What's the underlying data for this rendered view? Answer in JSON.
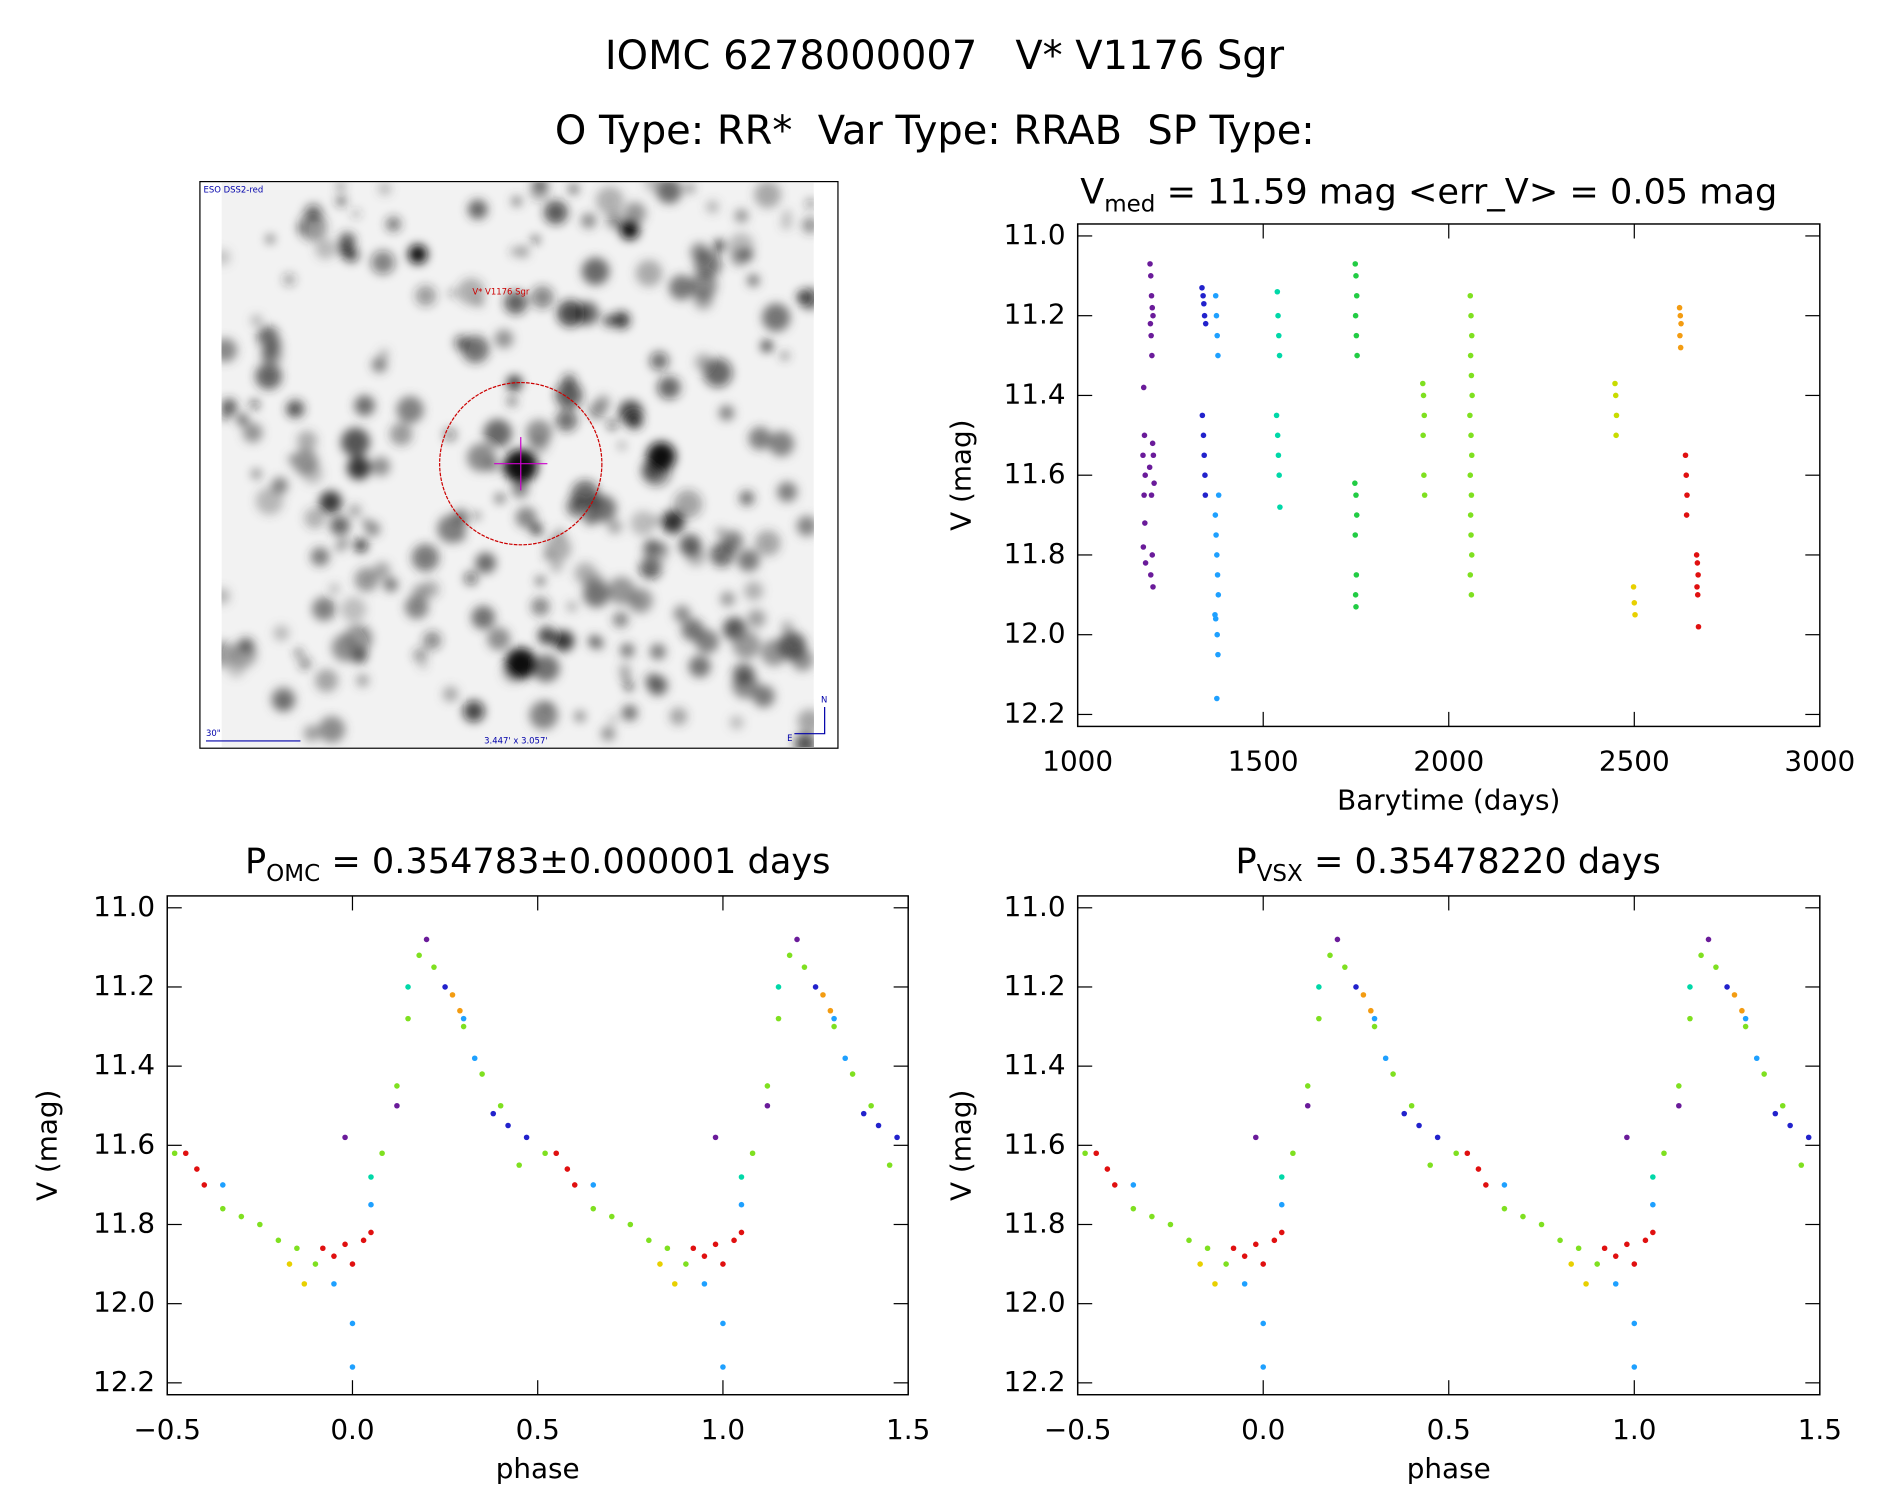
{
  "header": {
    "title": "IOMC 6278000007   V* V1176 Sgr",
    "subtitle": "O Type: RR*  Var Type: RRAB  SP Type:"
  },
  "image": {
    "survey": "ESO DSS2-red",
    "object": "V* V1176 Sgr",
    "scale": "30\"",
    "size": "3.447' x 3.057'",
    "north": "N",
    "east": "E"
  },
  "chart_data": [
    {
      "type": "scatter",
      "title": {
        "main": "V",
        "sub": "med",
        "rest": " = 11.59 mag <err_V> = 0.05 mag"
      },
      "xlabel": "Barytime (days)",
      "ylabel": "V (mag)",
      "xlim": [
        1000,
        3000
      ],
      "xticks": [
        1000,
        1500,
        2000,
        2500,
        3000
      ],
      "ylim": [
        10.97,
        12.23
      ],
      "y_inverted": true,
      "yticks": [
        {
          "value": 11,
          "label": "11.0"
        },
        11.2,
        11.4,
        11.6,
        11.8,
        {
          "value": 12,
          "label": "12.0"
        },
        12.2
      ],
      "series": [
        {
          "color": "#6a1b9a",
          "x": [
            1178,
            1180,
            1176,
            1182,
            1179,
            1181,
            1177,
            1183,
            1195,
            1197,
            1199,
            1201,
            1203,
            1196,
            1198,
            1200,
            1202,
            1204,
            1194,
            1206,
            1199,
            1201,
            1197,
            1203
          ],
          "values": [
            11.38,
            11.5,
            11.55,
            11.6,
            11.65,
            11.72,
            11.78,
            11.82,
            11.07,
            11.1,
            11.15,
            11.18,
            11.2,
            11.22,
            11.25,
            11.3,
            11.52,
            11.55,
            11.58,
            11.62,
            11.65,
            11.8,
            11.85,
            11.88
          ]
        },
        {
          "color": "#2222cc",
          "x": [
            1335,
            1338,
            1340,
            1342,
            1345,
            1336,
            1339,
            1341,
            1343,
            1344
          ],
          "values": [
            11.13,
            11.15,
            11.17,
            11.2,
            11.22,
            11.45,
            11.5,
            11.55,
            11.6,
            11.65
          ]
        },
        {
          "color": "#1ea0ff",
          "x": [
            1372,
            1374,
            1376,
            1378,
            1380,
            1371,
            1373,
            1375,
            1377,
            1379,
            1370,
            1372,
            1376,
            1378,
            1375
          ],
          "values": [
            11.15,
            11.2,
            11.25,
            11.3,
            11.65,
            11.7,
            11.75,
            11.8,
            11.85,
            11.9,
            11.95,
            11.96,
            12.0,
            12.05,
            12.16
          ]
        },
        {
          "color": "#00d8a8",
          "x": [
            1538,
            1540,
            1542,
            1544,
            1536,
            1539,
            1541,
            1543,
            1545
          ],
          "values": [
            11.14,
            11.2,
            11.25,
            11.3,
            11.45,
            11.5,
            11.55,
            11.6,
            11.68
          ]
        },
        {
          "color": "#22cc44",
          "x": [
            1748,
            1750,
            1752,
            1749,
            1751,
            1753,
            1747,
            1750,
            1752,
            1748,
            1751,
            1749,
            1750
          ],
          "values": [
            11.07,
            11.1,
            11.15,
            11.2,
            11.25,
            11.3,
            11.62,
            11.65,
            11.7,
            11.75,
            11.85,
            11.9,
            11.93
          ]
        },
        {
          "color": "#7fe020",
          "x": [
            1930,
            1932,
            1934,
            1931,
            1933,
            1935,
            2058,
            2060,
            2062,
            2059,
            2061,
            2063,
            2057,
            2060,
            2062,
            2058,
            2061,
            2059,
            2060,
            2062,
            2058,
            2061
          ],
          "values": [
            11.37,
            11.4,
            11.45,
            11.5,
            11.6,
            11.65,
            11.15,
            11.2,
            11.25,
            11.3,
            11.35,
            11.4,
            11.45,
            11.5,
            11.55,
            11.6,
            11.65,
            11.7,
            11.75,
            11.8,
            11.85,
            11.9
          ]
        },
        {
          "color": "#c8dc00",
          "x": [
            2448,
            2450,
            2452,
            2451
          ],
          "values": [
            11.37,
            11.4,
            11.45,
            11.5
          ]
        },
        {
          "color": "#e8d000",
          "x": [
            2498,
            2500,
            2502
          ],
          "values": [
            11.88,
            11.92,
            11.95
          ]
        },
        {
          "color": "#f39c12",
          "x": [
            2622,
            2624,
            2626,
            2623,
            2625
          ],
          "values": [
            11.18,
            11.2,
            11.22,
            11.25,
            11.28
          ]
        },
        {
          "color": "#e01010",
          "x": [
            2638,
            2640,
            2642,
            2641,
            2668,
            2670,
            2672,
            2669,
            2671,
            2673
          ],
          "values": [
            11.55,
            11.6,
            11.65,
            11.7,
            11.8,
            11.82,
            11.85,
            11.88,
            11.9,
            11.98
          ]
        }
      ]
    },
    {
      "type": "scatter",
      "title": {
        "main": "P",
        "sub": "OMC",
        "rest": " = 0.354783±0.000001 days"
      },
      "xlabel": "phase",
      "ylabel": "V (mag)",
      "xlim": [
        -0.5,
        1.5
      ],
      "xticks": [
        {
          "value": -0.5,
          "label": "−0.5"
        },
        {
          "value": 0,
          "label": "0.0"
        },
        0.5,
        {
          "value": 1,
          "label": "1.0"
        },
        1.5
      ],
      "ylim": [
        10.97,
        12.23
      ],
      "y_inverted": true,
      "yticks": [
        {
          "value": 11,
          "label": "11.0"
        },
        11.2,
        11.4,
        11.6,
        11.8,
        {
          "value": 12,
          "label": "12.0"
        },
        12.2
      ],
      "series": [
        {
          "color": "#e01010",
          "x": [
            -0.45,
            -0.42,
            -0.4,
            -0.08,
            -0.05,
            -0.02,
            0.0,
            0.03,
            0.05,
            0.55,
            0.58,
            0.6,
            0.92,
            0.95,
            0.98,
            1.0,
            1.03,
            1.05
          ],
          "values": [
            11.62,
            11.66,
            11.7,
            11.86,
            11.88,
            11.85,
            11.9,
            11.84,
            11.82,
            11.62,
            11.66,
            11.7,
            11.86,
            11.88,
            11.85,
            11.9,
            11.84,
            11.82
          ]
        },
        {
          "color": "#7fe020",
          "x": [
            -0.48,
            -0.35,
            -0.3,
            -0.25,
            -0.2,
            -0.15,
            -0.1,
            0.08,
            0.12,
            0.15,
            0.18,
            0.22,
            0.3,
            0.35,
            0.4,
            0.45,
            0.52,
            0.65,
            0.7,
            0.75,
            0.8,
            0.85,
            0.9,
            1.08,
            1.12,
            1.15,
            1.18,
            1.22,
            1.3,
            1.35,
            1.4,
            1.45
          ],
          "values": [
            11.62,
            11.76,
            11.78,
            11.8,
            11.84,
            11.86,
            11.9,
            11.62,
            11.45,
            11.28,
            11.12,
            11.15,
            11.3,
            11.42,
            11.5,
            11.65,
            11.62,
            11.76,
            11.78,
            11.8,
            11.84,
            11.86,
            11.9,
            11.62,
            11.45,
            11.28,
            11.12,
            11.15,
            11.3,
            11.42,
            11.5,
            11.65
          ]
        },
        {
          "color": "#1ea0ff",
          "x": [
            -0.35,
            -0.05,
            0.0,
            0.0,
            0.05,
            0.3,
            0.33,
            0.65,
            0.95,
            1.0,
            1.0,
            1.05,
            1.3,
            1.33
          ],
          "values": [
            11.7,
            11.95,
            12.05,
            12.16,
            11.75,
            11.28,
            11.38,
            11.7,
            11.95,
            12.05,
            12.16,
            11.75,
            11.28,
            11.38
          ]
        },
        {
          "color": "#2222cc",
          "x": [
            0.25,
            0.38,
            0.42,
            0.47,
            1.25,
            1.38,
            1.42,
            1.47
          ],
          "values": [
            11.2,
            11.52,
            11.55,
            11.58,
            11.2,
            11.52,
            11.55,
            11.58
          ]
        },
        {
          "color": "#6a1b9a",
          "x": [
            -0.02,
            0.12,
            0.2,
            0.98,
            1.12,
            1.2
          ],
          "values": [
            11.58,
            11.5,
            11.08,
            11.58,
            11.5,
            11.08
          ]
        },
        {
          "color": "#f39c12",
          "x": [
            0.27,
            0.29,
            1.27,
            1.29
          ],
          "values": [
            11.22,
            11.26,
            11.22,
            11.26
          ]
        },
        {
          "color": "#e8d000",
          "x": [
            -0.17,
            -0.13,
            0.83,
            0.87
          ],
          "values": [
            11.9,
            11.95,
            11.9,
            11.95
          ]
        },
        {
          "color": "#00d8a8",
          "x": [
            0.05,
            0.15,
            1.05,
            1.15
          ],
          "values": [
            11.68,
            11.2,
            11.68,
            11.2
          ]
        }
      ]
    },
    {
      "type": "scatter",
      "title": {
        "main": "P",
        "sub": "VSX",
        "rest": " = 0.35478220 days"
      },
      "xlabel": "phase",
      "ylabel": "V (mag)",
      "xlim": [
        -0.5,
        1.5
      ],
      "xticks": [
        {
          "value": -0.5,
          "label": "−0.5"
        },
        {
          "value": 0,
          "label": "0.0"
        },
        0.5,
        {
          "value": 1,
          "label": "1.0"
        },
        1.5
      ],
      "ylim": [
        10.97,
        12.23
      ],
      "y_inverted": true,
      "yticks": [
        {
          "value": 11,
          "label": "11.0"
        },
        11.2,
        11.4,
        11.6,
        11.8,
        {
          "value": 12,
          "label": "12.0"
        },
        12.2
      ],
      "series": [
        {
          "color": "#e01010",
          "x": [
            -0.45,
            -0.42,
            -0.4,
            -0.08,
            -0.05,
            -0.02,
            0.0,
            0.03,
            0.05,
            0.55,
            0.58,
            0.6,
            0.92,
            0.95,
            0.98,
            1.0,
            1.03,
            1.05
          ],
          "values": [
            11.62,
            11.66,
            11.7,
            11.86,
            11.88,
            11.85,
            11.9,
            11.84,
            11.82,
            11.62,
            11.66,
            11.7,
            11.86,
            11.88,
            11.85,
            11.9,
            11.84,
            11.82
          ]
        },
        {
          "color": "#7fe020",
          "x": [
            -0.48,
            -0.35,
            -0.3,
            -0.25,
            -0.2,
            -0.15,
            -0.1,
            0.08,
            0.12,
            0.15,
            0.18,
            0.22,
            0.3,
            0.35,
            0.4,
            0.45,
            0.52,
            0.65,
            0.7,
            0.75,
            0.8,
            0.85,
            0.9,
            1.08,
            1.12,
            1.15,
            1.18,
            1.22,
            1.3,
            1.35,
            1.4,
            1.45
          ],
          "values": [
            11.62,
            11.76,
            11.78,
            11.8,
            11.84,
            11.86,
            11.9,
            11.62,
            11.45,
            11.28,
            11.12,
            11.15,
            11.3,
            11.42,
            11.5,
            11.65,
            11.62,
            11.76,
            11.78,
            11.8,
            11.84,
            11.86,
            11.9,
            11.62,
            11.45,
            11.28,
            11.12,
            11.15,
            11.3,
            11.42,
            11.5,
            11.65
          ]
        },
        {
          "color": "#1ea0ff",
          "x": [
            -0.35,
            -0.05,
            0.0,
            0.0,
            0.05,
            0.3,
            0.33,
            0.65,
            0.95,
            1.0,
            1.0,
            1.05,
            1.3,
            1.33
          ],
          "values": [
            11.7,
            11.95,
            12.05,
            12.16,
            11.75,
            11.28,
            11.38,
            11.7,
            11.95,
            12.05,
            12.16,
            11.75,
            11.28,
            11.38
          ]
        },
        {
          "color": "#2222cc",
          "x": [
            0.25,
            0.38,
            0.42,
            0.47,
            1.25,
            1.38,
            1.42,
            1.47
          ],
          "values": [
            11.2,
            11.52,
            11.55,
            11.58,
            11.2,
            11.52,
            11.55,
            11.58
          ]
        },
        {
          "color": "#6a1b9a",
          "x": [
            -0.02,
            0.12,
            0.2,
            0.98,
            1.12,
            1.2
          ],
          "values": [
            11.58,
            11.5,
            11.08,
            11.58,
            11.5,
            11.08
          ]
        },
        {
          "color": "#f39c12",
          "x": [
            0.27,
            0.29,
            1.27,
            1.29
          ],
          "values": [
            11.22,
            11.26,
            11.22,
            11.26
          ]
        },
        {
          "color": "#e8d000",
          "x": [
            -0.17,
            -0.13,
            0.83,
            0.87
          ],
          "values": [
            11.9,
            11.95,
            11.9,
            11.95
          ]
        },
        {
          "color": "#00d8a8",
          "x": [
            0.05,
            0.15,
            1.05,
            1.15
          ],
          "values": [
            11.68,
            11.2,
            11.68,
            11.2
          ]
        }
      ]
    }
  ]
}
